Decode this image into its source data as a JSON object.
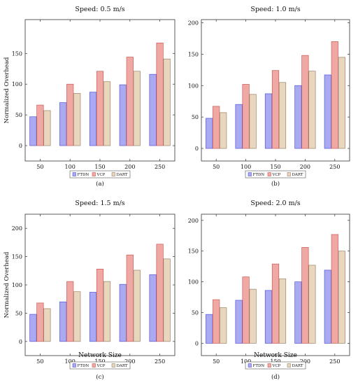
{
  "chart_data": [
    {
      "type": "bar",
      "title": "Speed: 0.5 m/s",
      "xlabel": "",
      "ylabel": "Normalized Overhead",
      "categories": [
        "50",
        "100",
        "150",
        "200",
        "250"
      ],
      "yticks": [
        "0",
        "50",
        "100",
        "150"
      ],
      "ylim": [
        -25,
        205
      ],
      "series": [
        {
          "name": "FTDN",
          "values": [
            47,
            70,
            87,
            99,
            116
          ]
        },
        {
          "name": "VCP",
          "values": [
            66,
            100,
            121,
            144,
            167
          ]
        },
        {
          "name": "DART",
          "values": [
            57,
            85,
            104,
            121,
            141
          ]
        }
      ],
      "legend_position": "below",
      "caption": "(a)",
      "grid": false
    },
    {
      "type": "bar",
      "title": "Speed: 1.0 m/s",
      "xlabel": "",
      "ylabel": "",
      "categories": [
        "50",
        "100",
        "150",
        "200",
        "250"
      ],
      "yticks": [
        "0",
        "50",
        "100",
        "150",
        "200"
      ],
      "ylim": [
        -20,
        205
      ],
      "series": [
        {
          "name": "FTDN",
          "values": [
            48,
            70,
            87,
            100,
            117
          ]
        },
        {
          "name": "VCP",
          "values": [
            67,
            102,
            124,
            148,
            170
          ]
        },
        {
          "name": "DART",
          "values": [
            57,
            86,
            105,
            123,
            145
          ]
        }
      ],
      "legend_position": "below",
      "caption": "(b)",
      "grid": false
    },
    {
      "type": "bar",
      "title": "Speed: 1.5 m/s",
      "xlabel": "Network Size",
      "ylabel": "Normalized Overhead",
      "categories": [
        "50",
        "100",
        "150",
        "200",
        "250"
      ],
      "yticks": [
        "0",
        "50",
        "100",
        "150",
        "200"
      ],
      "ylim": [
        -25,
        225
      ],
      "series": [
        {
          "name": "FTDN",
          "values": [
            48,
            70,
            87,
            101,
            118
          ]
        },
        {
          "name": "VCP",
          "values": [
            68,
            106,
            128,
            153,
            172
          ]
        },
        {
          "name": "DART",
          "values": [
            58,
            88,
            106,
            126,
            146
          ]
        }
      ],
      "legend_position": "below",
      "caption": "(c)",
      "grid": false
    },
    {
      "type": "bar",
      "title": "Speed: 2.0 m/s",
      "xlabel": "Network Size",
      "ylabel": "",
      "categories": [
        "50",
        "100",
        "150",
        "200",
        "250"
      ],
      "yticks": [
        "0",
        "50",
        "100",
        "150",
        "200"
      ],
      "ylim": [
        -20,
        210
      ],
      "series": [
        {
          "name": "FTDN",
          "values": [
            47,
            70,
            86,
            100,
            119
          ]
        },
        {
          "name": "VCP",
          "values": [
            71,
            108,
            129,
            156,
            177
          ]
        },
        {
          "name": "DART",
          "values": [
            58,
            88,
            105,
            127,
            150
          ]
        }
      ],
      "legend_position": "below",
      "caption": "(d)",
      "grid": false
    }
  ],
  "colors": {
    "FTDN": {
      "fill": "#aaaaf2",
      "stroke": "#5555d8"
    },
    "VCP": {
      "fill": "#f0a8a4",
      "stroke": "#cc5a55"
    },
    "DART": {
      "fill": "#e8d6be",
      "stroke": "#9a8468"
    }
  }
}
